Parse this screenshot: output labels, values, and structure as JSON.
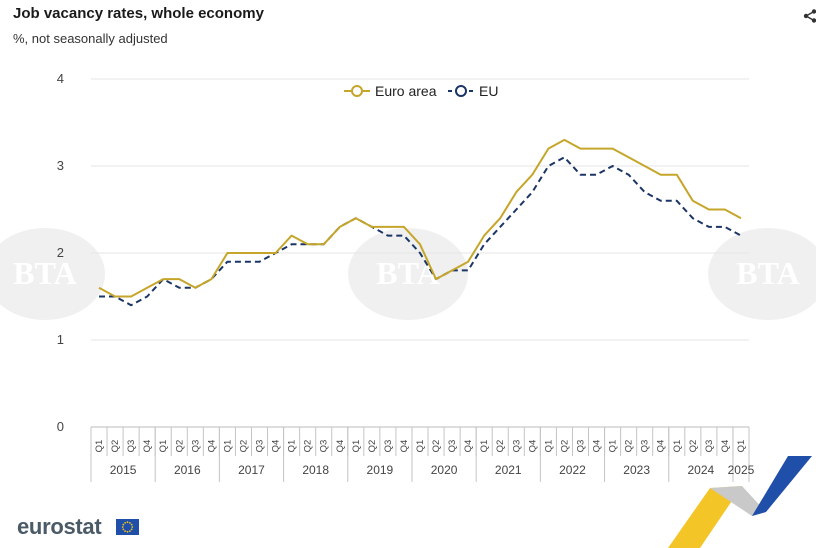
{
  "header": {
    "title": "Job vacancy rates, whole economy",
    "subtitle": "%, not  seasonally adjusted"
  },
  "footer": {
    "brand": "eurostat",
    "watermark_text": "BTA"
  },
  "icons": {
    "share": "share-icon",
    "flag": "eu-flag-icon",
    "ribbon": "eurostat-ribbon-icon"
  },
  "colors": {
    "euro_area": "#c6a62a",
    "eu": "#1b3566",
    "grid": "#e6e6e6",
    "axis_text": "#444444",
    "ribbon_blue": "#1f4fa8",
    "ribbon_yellow": "#f3c21b"
  },
  "chart_data": {
    "type": "line",
    "yticks": [
      "0",
      "1",
      "2",
      "3",
      "4"
    ],
    "ylim": [
      0,
      4
    ],
    "grid": true,
    "legend_position": "top-center",
    "quarters": [
      "Q1",
      "Q2",
      "Q3",
      "Q4",
      "Q1",
      "Q2",
      "Q3",
      "Q4",
      "Q1",
      "Q2",
      "Q3",
      "Q4",
      "Q1",
      "Q2",
      "Q3",
      "Q4",
      "Q1",
      "Q2",
      "Q3",
      "Q4",
      "Q1",
      "Q2",
      "Q3",
      "Q4",
      "Q1",
      "Q2",
      "Q3",
      "Q4",
      "Q1",
      "Q2",
      "Q3",
      "Q4",
      "Q1",
      "Q2",
      "Q3",
      "Q4",
      "Q1",
      "Q2",
      "Q3",
      "Q4",
      "Q1"
    ],
    "years": [
      "2015",
      "2016",
      "2017",
      "2018",
      "2019",
      "2020",
      "2021",
      "2022",
      "2023",
      "2024",
      "2025"
    ],
    "series": [
      {
        "name": "Euro area",
        "style": "solid",
        "values": [
          1.6,
          1.5,
          1.5,
          1.6,
          1.7,
          1.7,
          1.6,
          1.7,
          2.0,
          2.0,
          2.0,
          2.0,
          2.2,
          2.1,
          2.1,
          2.3,
          2.4,
          2.3,
          2.3,
          2.3,
          2.1,
          1.7,
          1.8,
          1.9,
          2.2,
          2.4,
          2.7,
          2.9,
          3.2,
          3.3,
          3.2,
          3.2,
          3.2,
          3.1,
          3.0,
          2.9,
          2.9,
          2.6,
          2.5,
          2.5,
          2.4
        ]
      },
      {
        "name": "EU",
        "style": "dashed",
        "values": [
          1.5,
          1.5,
          1.4,
          1.5,
          1.7,
          1.6,
          1.6,
          1.7,
          1.9,
          1.9,
          1.9,
          2.0,
          2.1,
          2.1,
          2.1,
          2.3,
          2.4,
          2.3,
          2.2,
          2.2,
          2.0,
          1.7,
          1.8,
          1.8,
          2.1,
          2.3,
          2.5,
          2.7,
          3.0,
          3.1,
          2.9,
          2.9,
          3.0,
          2.9,
          2.7,
          2.6,
          2.6,
          2.4,
          2.3,
          2.3,
          2.2
        ]
      }
    ]
  }
}
